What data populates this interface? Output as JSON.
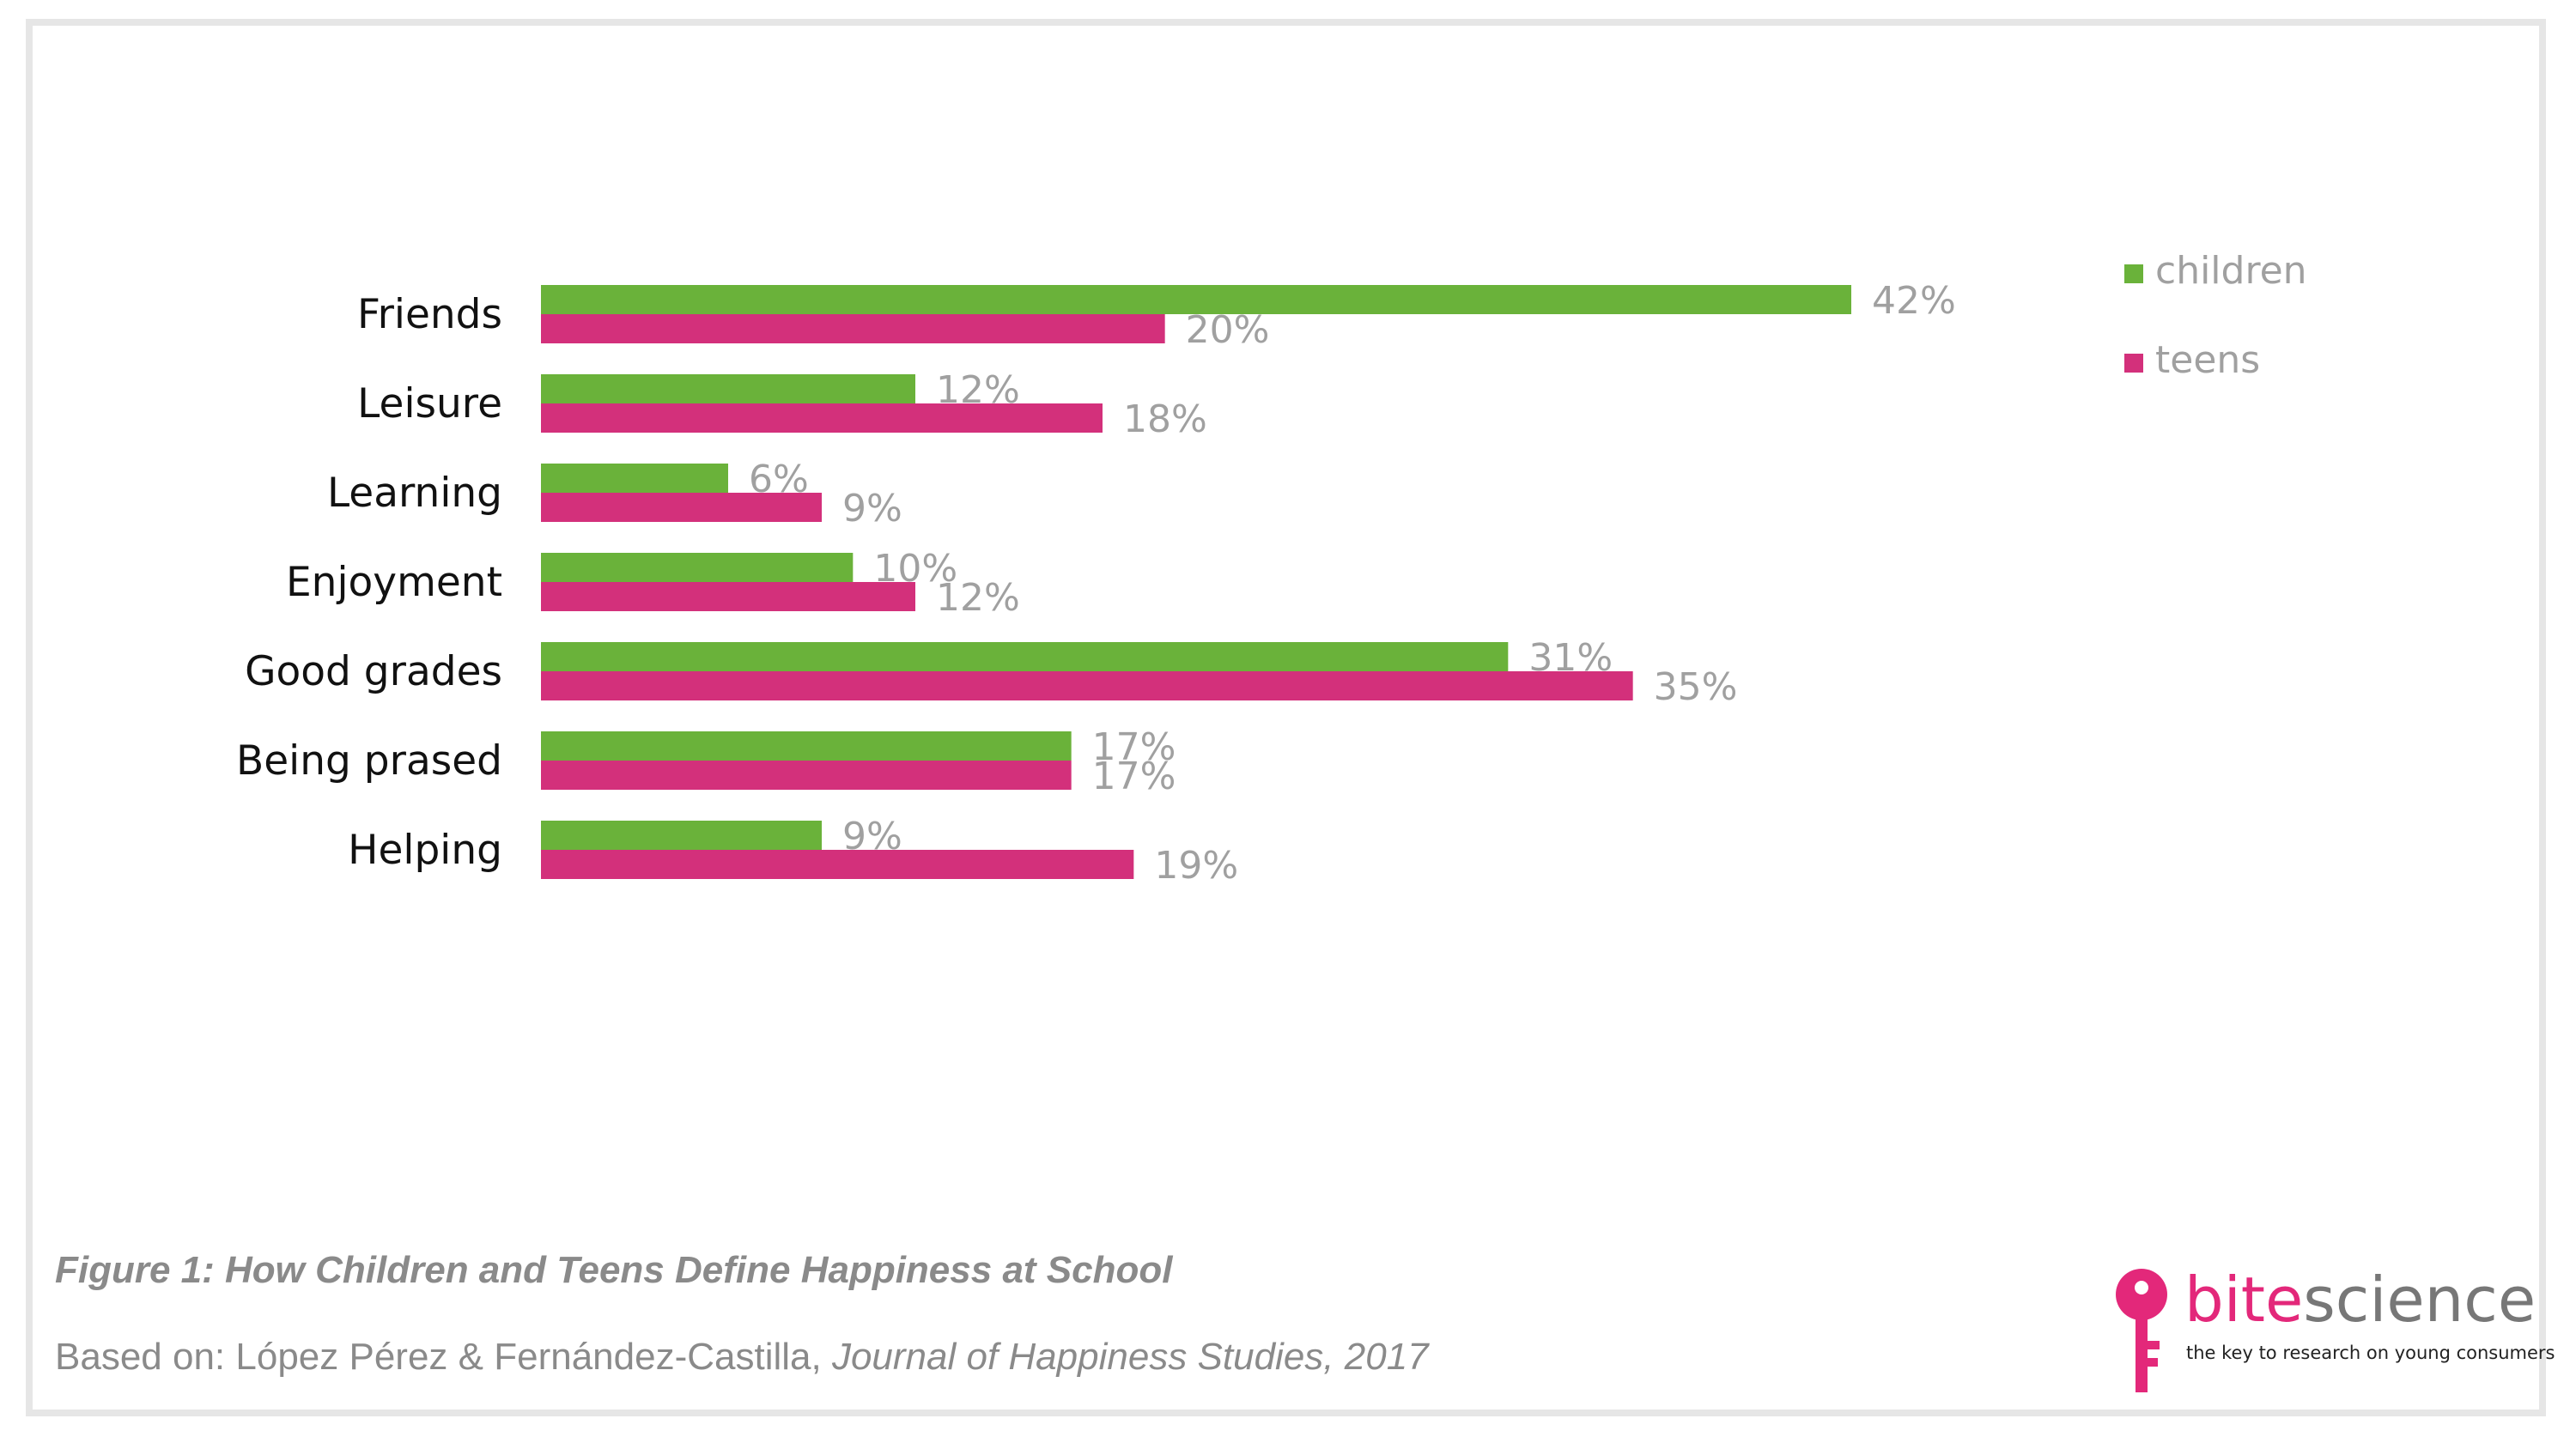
{
  "chart_data": {
    "type": "bar",
    "orientation": "horizontal",
    "categories": [
      "Friends",
      "Leisure",
      "Learning",
      "Enjoyment",
      "Good grades",
      "Being prased",
      "Helping"
    ],
    "series": [
      {
        "name": "children",
        "color": "#6ab23a",
        "values": [
          42,
          12,
          6,
          10,
          31,
          17,
          9
        ],
        "labels": [
          "42%",
          "12%",
          "6%",
          "10%",
          "31%",
          "17%",
          "9%"
        ]
      },
      {
        "name": "teens",
        "color": "#d3307b",
        "values": [
          20,
          18,
          9,
          12,
          35,
          17,
          19
        ],
        "labels": [
          "20%",
          "18%",
          "9%",
          "12%",
          "35%",
          "17%",
          "19%"
        ]
      }
    ],
    "xlim": [
      0,
      50
    ],
    "grid": false,
    "legend_position": "top-right",
    "data_labels": "outside-end"
  },
  "caption": {
    "title": "Figure 1: How Children and Teens Define Happiness at School",
    "source_prefix": "Based on: López Pérez & Fernández-Castilla, ",
    "source_italic": "Journal of Happiness Studies, 2017"
  },
  "logo": {
    "word_part1": "bite",
    "word_part2": "science",
    "tagline": "the key to research on young consumers",
    "brand_color": "#e3287a",
    "icon": "key-icon"
  }
}
